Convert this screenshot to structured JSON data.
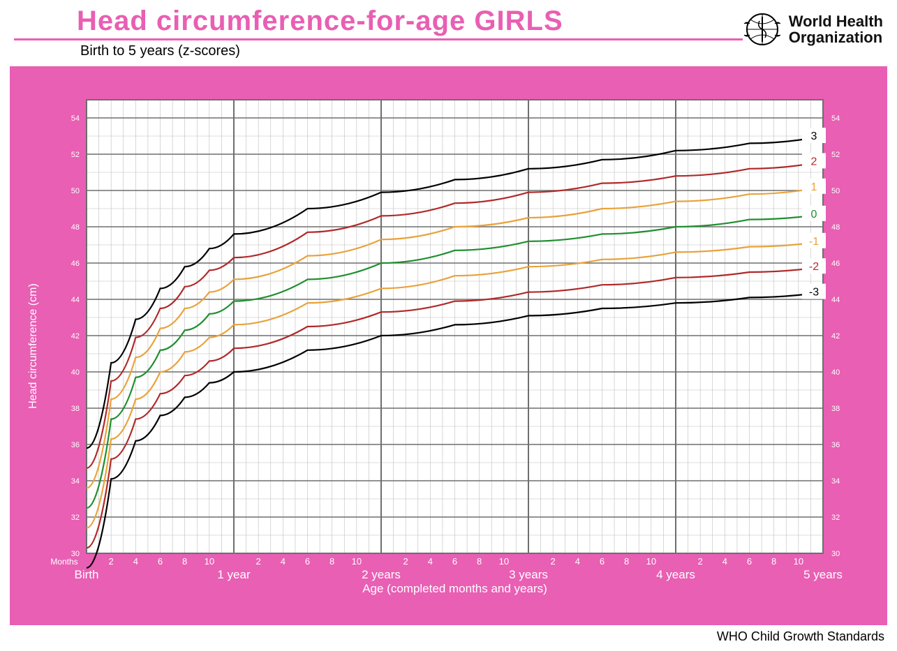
{
  "header": {
    "title": "Head circumference-for-age  GIRLS",
    "title_color": "#e85fb3",
    "subtitle": "Birth to 5 years (z-scores)",
    "rule_color": "#e85fb3",
    "org_line1": "World Health",
    "org_line2": "Organization"
  },
  "footer": {
    "text": "WHO Child Growth Standards"
  },
  "chart": {
    "type": "line-growth-chart",
    "frame_bg": "#e85fb3",
    "plot_bg": "#ffffff",
    "grid_minor_color": "#bdbdbd",
    "grid_major_color": "#6e6e6e",
    "y_axis_title": "Head circumference (cm)",
    "x_axis_title": "Age (completed months and years)",
    "months_label": "Months",
    "x_year_labels": [
      "Birth",
      "1 year",
      "2 years",
      "3 years",
      "4 years",
      "5 years"
    ],
    "x_month_ticks": [
      2,
      4,
      6,
      8,
      10
    ],
    "y_ticks_left": [
      30,
      32,
      34,
      36,
      38,
      40,
      42,
      44,
      46,
      48,
      50,
      52,
      54
    ],
    "y_ticks_right": [
      30,
      32,
      34,
      36,
      38,
      40,
      42,
      44,
      46,
      48,
      50,
      52,
      54
    ],
    "x_min_months": 0,
    "x_max_months": 60,
    "y_min": 30,
    "y_max": 55,
    "z_label_box_bg": "#ffffff",
    "label_font_size": 14,
    "tick_font_size": 11,
    "series": [
      {
        "z": "3",
        "color": "#000000",
        "label_color": "#000000",
        "points": [
          [
            0,
            35.8
          ],
          [
            2,
            40.5
          ],
          [
            4,
            42.9
          ],
          [
            6,
            44.6
          ],
          [
            8,
            45.8
          ],
          [
            10,
            46.8
          ],
          [
            12,
            47.6
          ],
          [
            18,
            49.0
          ],
          [
            24,
            49.9
          ],
          [
            30,
            50.6
          ],
          [
            36,
            51.2
          ],
          [
            42,
            51.7
          ],
          [
            48,
            52.2
          ],
          [
            54,
            52.6
          ],
          [
            60,
            53.0
          ]
        ]
      },
      {
        "z": "2",
        "color": "#b02a2a",
        "label_color": "#b02a2a",
        "points": [
          [
            0,
            34.7
          ],
          [
            2,
            39.5
          ],
          [
            4,
            41.9
          ],
          [
            6,
            43.5
          ],
          [
            8,
            44.7
          ],
          [
            10,
            45.6
          ],
          [
            12,
            46.3
          ],
          [
            18,
            47.7
          ],
          [
            24,
            48.6
          ],
          [
            30,
            49.3
          ],
          [
            36,
            49.9
          ],
          [
            42,
            50.4
          ],
          [
            48,
            50.8
          ],
          [
            54,
            51.2
          ],
          [
            60,
            51.6
          ]
        ]
      },
      {
        "z": "1",
        "color": "#e9a23b",
        "label_color": "#e9a23b",
        "points": [
          [
            0,
            33.6
          ],
          [
            2,
            38.5
          ],
          [
            4,
            40.8
          ],
          [
            6,
            42.4
          ],
          [
            8,
            43.5
          ],
          [
            10,
            44.4
          ],
          [
            12,
            45.1
          ],
          [
            18,
            46.4
          ],
          [
            24,
            47.3
          ],
          [
            30,
            48.0
          ],
          [
            36,
            48.5
          ],
          [
            42,
            49.0
          ],
          [
            48,
            49.4
          ],
          [
            54,
            49.8
          ],
          [
            60,
            50.2
          ]
        ]
      },
      {
        "z": "0",
        "color": "#1f8f2f",
        "label_color": "#1f8f2f",
        "points": [
          [
            0,
            32.5
          ],
          [
            2,
            37.4
          ],
          [
            4,
            39.7
          ],
          [
            6,
            41.2
          ],
          [
            8,
            42.3
          ],
          [
            10,
            43.2
          ],
          [
            12,
            43.9
          ],
          [
            18,
            45.1
          ],
          [
            24,
            46.0
          ],
          [
            30,
            46.7
          ],
          [
            36,
            47.2
          ],
          [
            42,
            47.6
          ],
          [
            48,
            48.0
          ],
          [
            54,
            48.4
          ],
          [
            60,
            48.7
          ]
        ]
      },
      {
        "z": "-1",
        "color": "#e9a23b",
        "label_color": "#e9a23b",
        "points": [
          [
            0,
            31.4
          ],
          [
            2,
            36.3
          ],
          [
            4,
            38.5
          ],
          [
            6,
            40.0
          ],
          [
            8,
            41.1
          ],
          [
            10,
            41.9
          ],
          [
            12,
            42.6
          ],
          [
            18,
            43.8
          ],
          [
            24,
            44.6
          ],
          [
            30,
            45.3
          ],
          [
            36,
            45.8
          ],
          [
            42,
            46.2
          ],
          [
            48,
            46.6
          ],
          [
            54,
            46.9
          ],
          [
            60,
            47.2
          ]
        ]
      },
      {
        "z": "-2",
        "color": "#b02a2a",
        "label_color": "#b02a2a",
        "points": [
          [
            0,
            30.3
          ],
          [
            2,
            35.2
          ],
          [
            4,
            37.4
          ],
          [
            6,
            38.8
          ],
          [
            8,
            39.8
          ],
          [
            10,
            40.6
          ],
          [
            12,
            41.3
          ],
          [
            18,
            42.5
          ],
          [
            24,
            43.3
          ],
          [
            30,
            43.9
          ],
          [
            36,
            44.4
          ],
          [
            42,
            44.8
          ],
          [
            48,
            45.2
          ],
          [
            54,
            45.5
          ],
          [
            60,
            45.8
          ]
        ]
      },
      {
        "z": "-3",
        "color": "#000000",
        "label_color": "#000000",
        "points": [
          [
            0,
            29.2
          ],
          [
            2,
            34.1
          ],
          [
            4,
            36.2
          ],
          [
            6,
            37.6
          ],
          [
            8,
            38.6
          ],
          [
            10,
            39.4
          ],
          [
            12,
            40.0
          ],
          [
            18,
            41.2
          ],
          [
            24,
            42.0
          ],
          [
            30,
            42.6
          ],
          [
            36,
            43.1
          ],
          [
            42,
            43.5
          ],
          [
            48,
            43.8
          ],
          [
            54,
            44.1
          ],
          [
            60,
            44.4
          ]
        ]
      }
    ]
  }
}
